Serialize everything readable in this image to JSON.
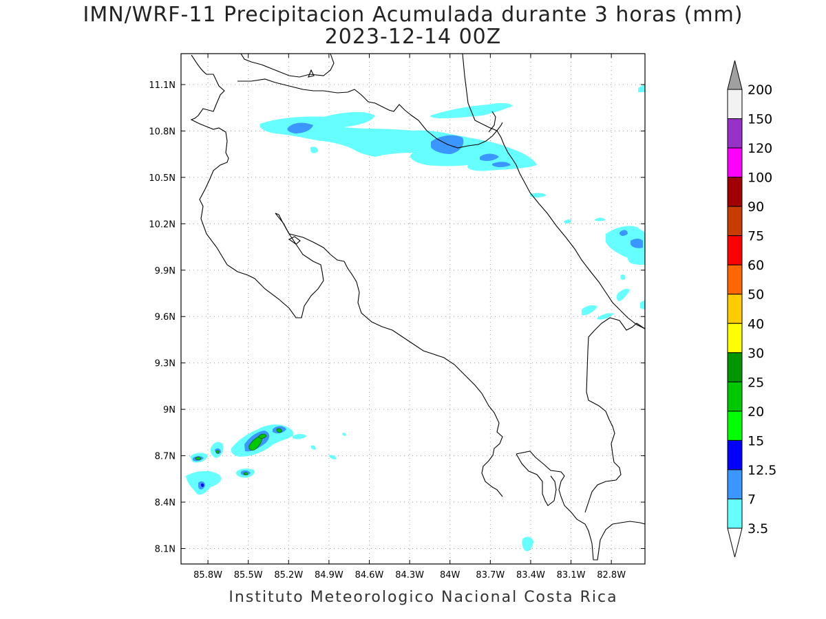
{
  "title_line1": "IMN/WRF-11 Precipitacion Acumulada durante 3 horas (mm)",
  "title_line2": "2023-12-14 00Z",
  "footer": "Instituto Meteorologico Nacional Costa Rica",
  "map": {
    "lon_range": [
      -86.0,
      -82.55
    ],
    "lat_range": [
      8.0,
      11.3
    ],
    "lon_ticks": [
      "85.8W",
      "85.5W",
      "85.2W",
      "84.9W",
      "84.6W",
      "84.3W",
      "84W",
      "83.7W",
      "83.4W",
      "83.1W",
      "82.8W"
    ],
    "lat_ticks": [
      "11.1N",
      "10.8N",
      "10.5N",
      "10.2N",
      "9.9N",
      "9.6N",
      "9.3N",
      "9N",
      "8.7N",
      "8.4N",
      "8.1N"
    ],
    "grid": "dotted"
  },
  "colorbar": {
    "labels": [
      "200",
      "150",
      "120",
      "100",
      "90",
      "75",
      "60",
      "50",
      "40",
      "30",
      "25",
      "20",
      "15",
      "12.5",
      "7",
      "3.5"
    ],
    "colors": [
      "#a0a0a0",
      "#f2f2f2",
      "#9632c8",
      "#ff00ff",
      "#a00000",
      "#c83c00",
      "#ff0000",
      "#ff6600",
      "#ffcc00",
      "#ffff00",
      "#009600",
      "#00c800",
      "#00ff00",
      "#0000ff",
      "#3c96ff",
      "#66ffff",
      "#ffffff"
    ]
  }
}
